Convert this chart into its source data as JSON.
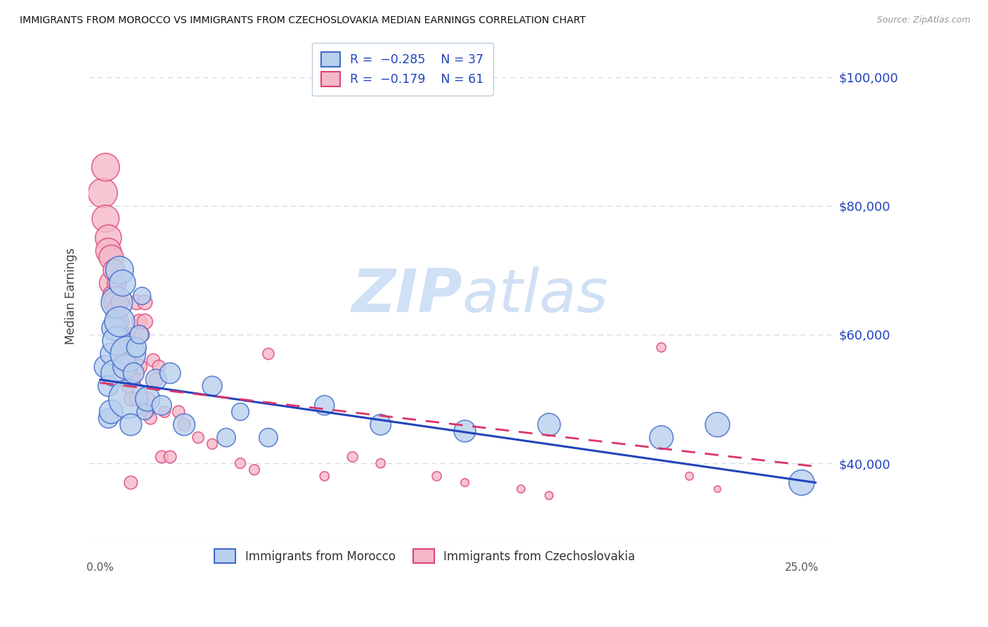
{
  "title": "IMMIGRANTS FROM MOROCCO VS IMMIGRANTS FROM CZECHOSLOVAKIA MEDIAN EARNINGS CORRELATION CHART",
  "source": "Source: ZipAtlas.com",
  "ylabel": "Median Earnings",
  "legend_label1": "Immigrants from Morocco",
  "legend_label2": "Immigrants from Czechoslovakia",
  "r1": -0.285,
  "n1": 37,
  "r2": -0.179,
  "n2": 61,
  "color_morocco_fill": "#b8d0ee",
  "color_morocco_edge": "#4169cc",
  "color_czech_fill": "#f5b8c8",
  "color_czech_edge": "#dd4477",
  "color_line_morocco": "#2244bb",
  "color_line_czech": "#dd3366",
  "watermark_color": "#d0e0f5",
  "grid_color": "#ccddee",
  "ylim": [
    28000,
    104000
  ],
  "xlim": [
    -0.004,
    0.262
  ],
  "yticks": [
    40000,
    60000,
    80000,
    100000
  ],
  "ytick_labels": [
    "$40,000",
    "$60,000",
    "$80,000",
    "$100,000"
  ],
  "morocco_line": [
    0.0,
    53000,
    0.255,
    37000
  ],
  "czech_line": [
    0.0,
    52500,
    0.255,
    39500
  ],
  "morocco_x": [
    0.002,
    0.003,
    0.003,
    0.004,
    0.004,
    0.005,
    0.005,
    0.006,
    0.006,
    0.007,
    0.007,
    0.008,
    0.009,
    0.01,
    0.01,
    0.011,
    0.012,
    0.013,
    0.014,
    0.015,
    0.016,
    0.017,
    0.02,
    0.022,
    0.025,
    0.03,
    0.04,
    0.045,
    0.05,
    0.06,
    0.08,
    0.1,
    0.13,
    0.16,
    0.2,
    0.22,
    0.25
  ],
  "morocco_y": [
    55000,
    47000,
    52000,
    57000,
    48000,
    61000,
    54000,
    59000,
    65000,
    62000,
    70000,
    68000,
    55000,
    50000,
    57000,
    46000,
    54000,
    58000,
    60000,
    66000,
    48000,
    50000,
    53000,
    49000,
    54000,
    46000,
    52000,
    44000,
    48000,
    44000,
    49000,
    46000,
    45000,
    46000,
    44000,
    46000,
    37000
  ],
  "morocco_s": [
    120,
    90,
    100,
    110,
    130,
    140,
    160,
    190,
    230,
    210,
    180,
    160,
    140,
    350,
    290,
    110,
    100,
    90,
    80,
    70,
    60,
    140,
    100,
    90,
    100,
    110,
    90,
    80,
    70,
    80,
    90,
    100,
    110,
    120,
    130,
    140,
    150
  ],
  "czech_x": [
    0.001,
    0.002,
    0.002,
    0.003,
    0.003,
    0.004,
    0.004,
    0.005,
    0.005,
    0.005,
    0.006,
    0.006,
    0.006,
    0.007,
    0.007,
    0.007,
    0.008,
    0.008,
    0.009,
    0.009,
    0.01,
    0.01,
    0.011,
    0.011,
    0.011,
    0.012,
    0.012,
    0.013,
    0.013,
    0.014,
    0.014,
    0.015,
    0.015,
    0.016,
    0.016,
    0.017,
    0.017,
    0.018,
    0.019,
    0.02,
    0.021,
    0.022,
    0.023,
    0.025,
    0.028,
    0.03,
    0.035,
    0.04,
    0.05,
    0.055,
    0.06,
    0.08,
    0.1,
    0.13,
    0.16,
    0.2,
    0.21,
    0.22,
    0.15,
    0.12,
    0.09
  ],
  "czech_y": [
    82000,
    86000,
    78000,
    75000,
    73000,
    72000,
    68000,
    66000,
    70000,
    65000,
    63000,
    64000,
    68000,
    62000,
    60000,
    65000,
    58000,
    57000,
    60000,
    55000,
    52000,
    56000,
    54000,
    37000,
    50000,
    53000,
    60000,
    50000,
    65000,
    62000,
    55000,
    60000,
    50000,
    65000,
    62000,
    50000,
    48000,
    47000,
    56000,
    53000,
    55000,
    41000,
    48000,
    41000,
    48000,
    46000,
    44000,
    43000,
    40000,
    39000,
    57000,
    38000,
    40000,
    37000,
    35000,
    58000,
    38000,
    36000,
    36000,
    38000,
    41000
  ],
  "czech_s": [
    200,
    180,
    170,
    160,
    150,
    140,
    130,
    120,
    110,
    100,
    95,
    90,
    85,
    80,
    75,
    70,
    65,
    60,
    55,
    50,
    45,
    55,
    50,
    40,
    45,
    45,
    50,
    45,
    50,
    50,
    55,
    50,
    45,
    50,
    55,
    45,
    40,
    35,
    40,
    45,
    40,
    35,
    30,
    35,
    35,
    35,
    30,
    25,
    25,
    25,
    30,
    20,
    20,
    15,
    15,
    20,
    15,
    10,
    15,
    20,
    25
  ]
}
